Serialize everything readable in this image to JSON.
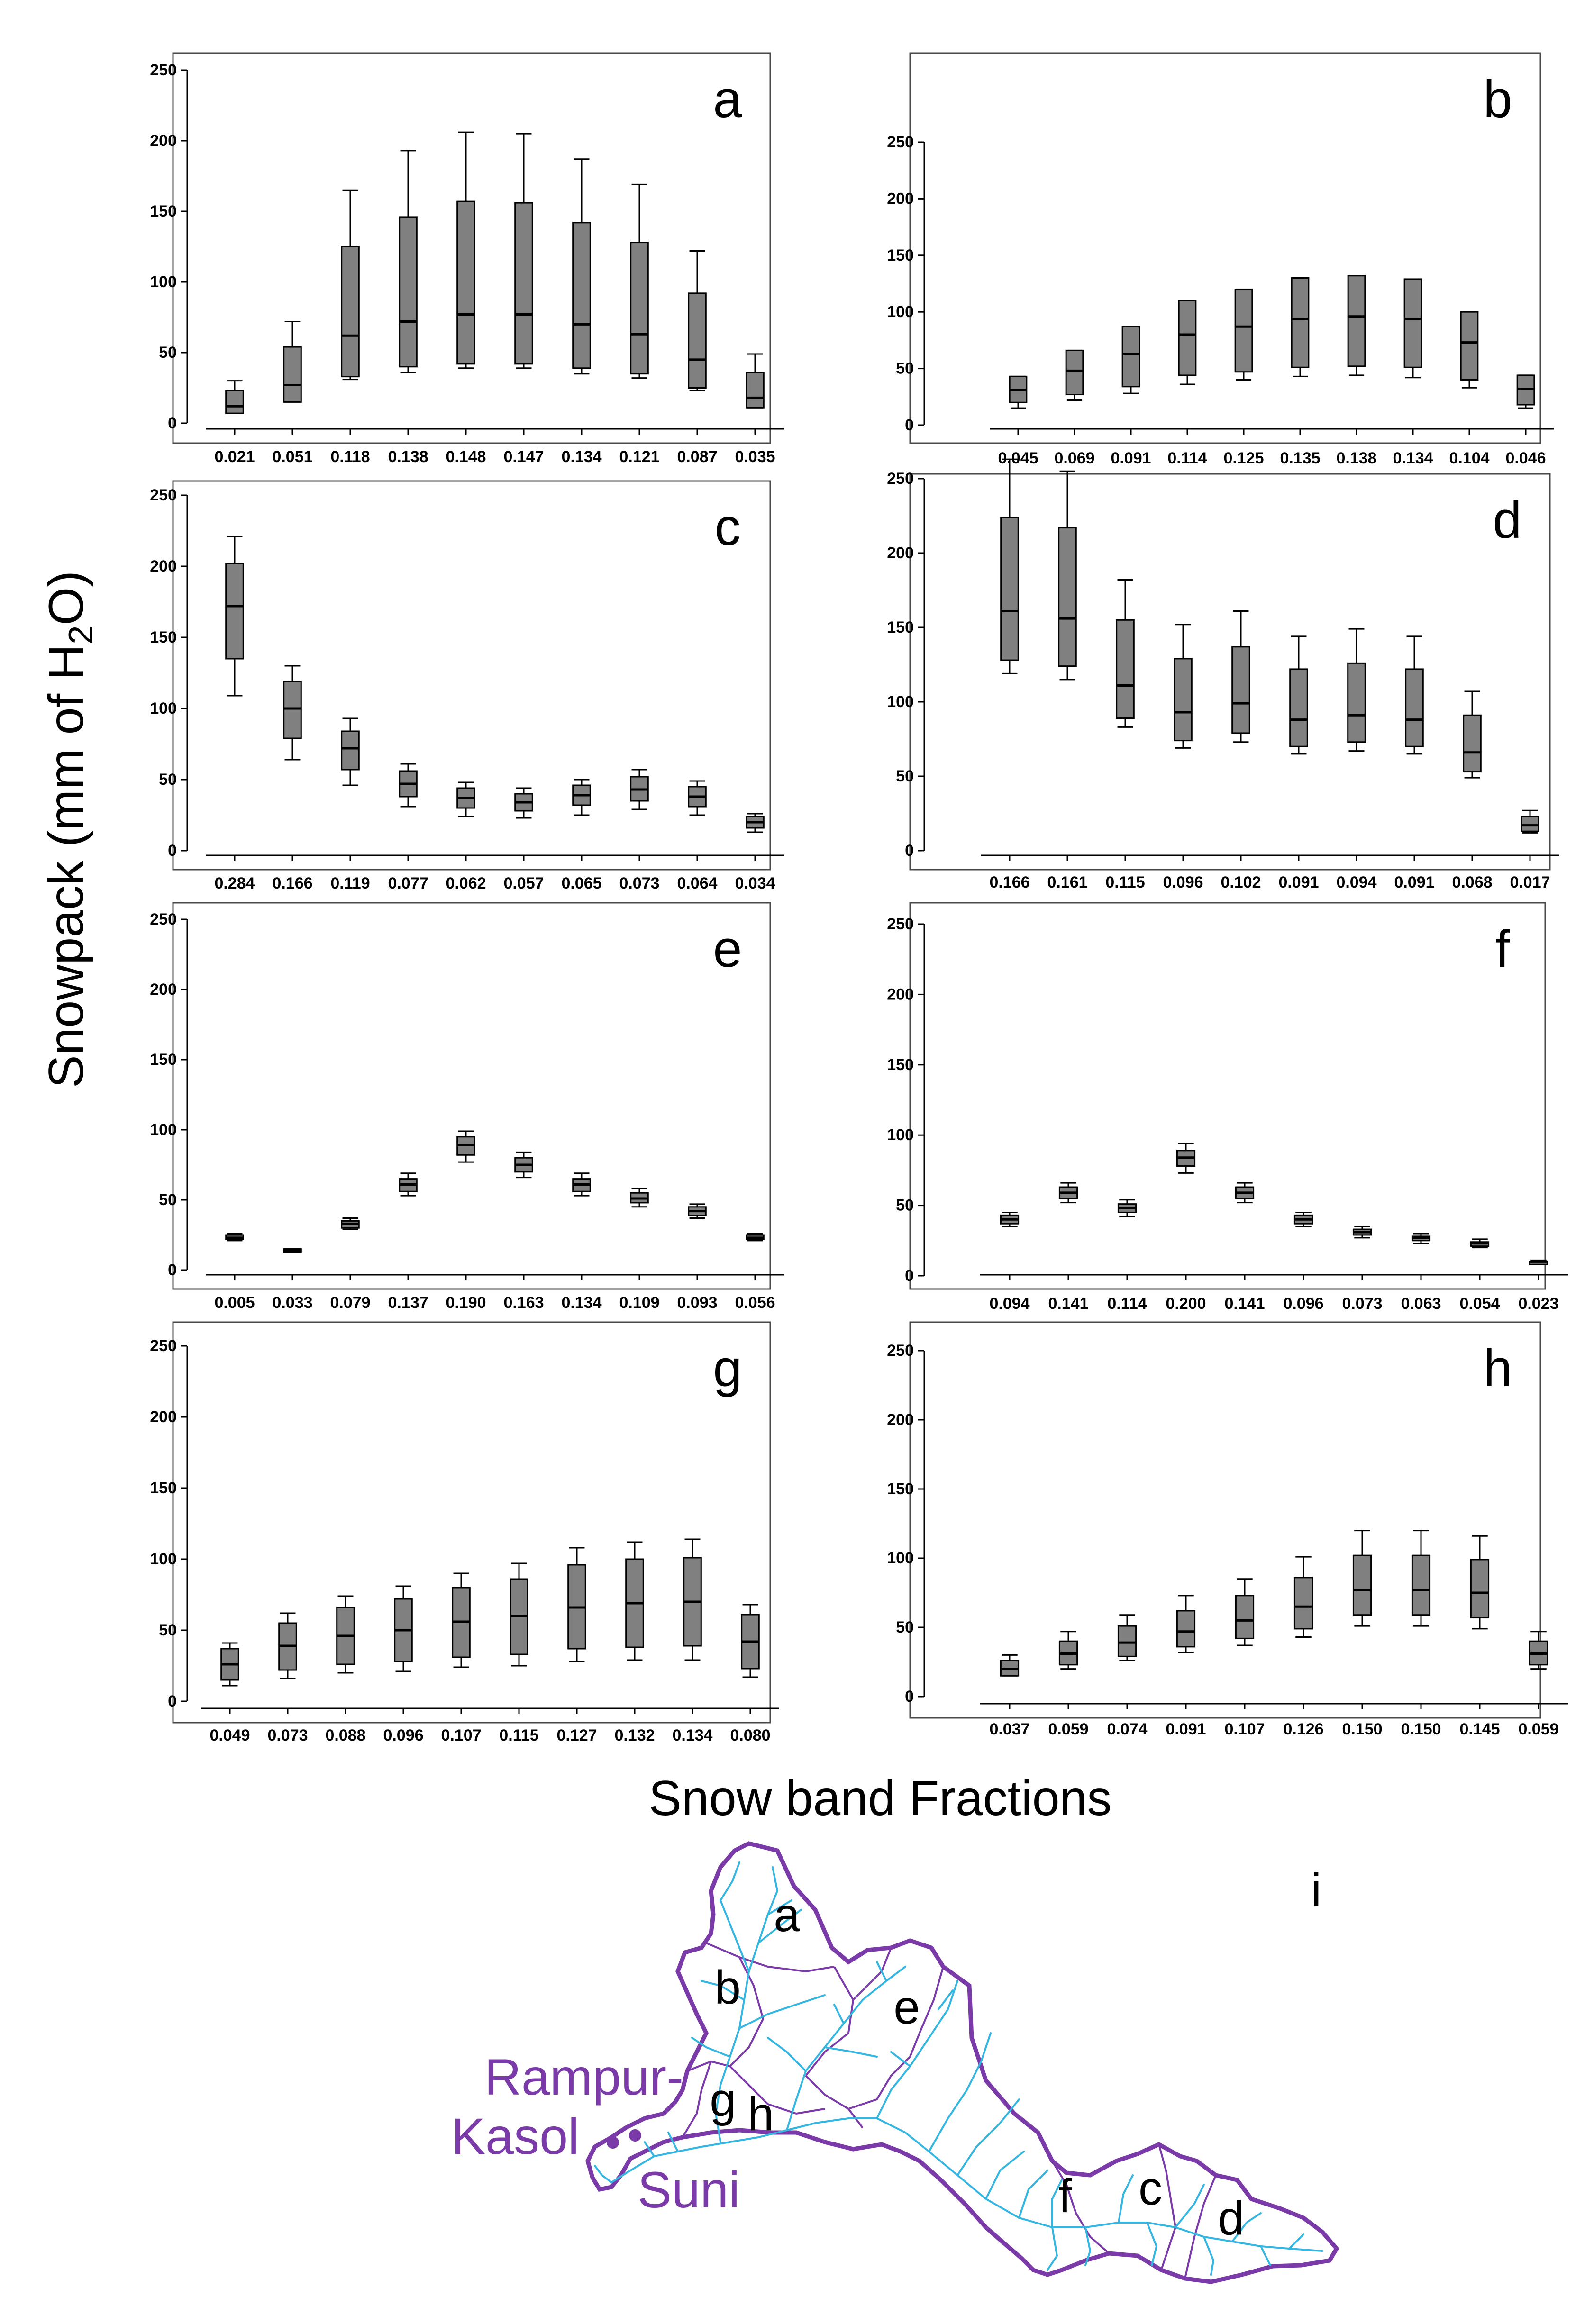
{
  "figure": {
    "ylabel_main": "Snowpack (mm of H",
    "ylabel_sub": "2",
    "ylabel_end": "O)",
    "xlabel": "Snow band Fractions",
    "colors": {
      "box": "#808080",
      "frame": "#4a4a4a",
      "river": "#35b6e0",
      "basin": "#7a3aa8",
      "text": "#000000"
    }
  },
  "chart_data": [
    {
      "type": "boxplot",
      "panel": "a",
      "ylim": [
        0,
        250
      ],
      "yticks": [
        0,
        50,
        100,
        150,
        200,
        250
      ],
      "categories": [
        "0.021",
        "0.051",
        "0.118",
        "0.138",
        "0.148",
        "0.147",
        "0.134",
        "0.121",
        "0.087",
        "0.035"
      ],
      "boxes": [
        {
          "min": 7,
          "q1": 7,
          "median": 12,
          "q3": 23,
          "max": 30
        },
        {
          "min": 15,
          "q1": 15,
          "median": 27,
          "q3": 54,
          "max": 72
        },
        {
          "min": 31,
          "q1": 33,
          "median": 62,
          "q3": 125,
          "max": 165
        },
        {
          "min": 36,
          "q1": 40,
          "median": 72,
          "q3": 146,
          "max": 193
        },
        {
          "min": 39,
          "q1": 42,
          "median": 77,
          "q3": 157,
          "max": 206
        },
        {
          "min": 39,
          "q1": 42,
          "median": 77,
          "q3": 156,
          "max": 205
        },
        {
          "min": 35,
          "q1": 39,
          "median": 70,
          "q3": 142,
          "max": 187
        },
        {
          "min": 32,
          "q1": 35,
          "median": 63,
          "q3": 128,
          "max": 169
        },
        {
          "min": 23,
          "q1": 25,
          "median": 45,
          "q3": 92,
          "max": 122
        },
        {
          "min": 11,
          "q1": 11,
          "median": 18,
          "q3": 36,
          "max": 49
        }
      ]
    },
    {
      "type": "boxplot",
      "panel": "b",
      "ylim": [
        0,
        250
      ],
      "yticks": [
        0,
        50,
        100,
        150,
        200,
        250
      ],
      "categories": [
        "0.045",
        "0.069",
        "0.091",
        "0.114",
        "0.125",
        "0.135",
        "0.138",
        "0.134",
        "0.104",
        "0.046"
      ],
      "boxes": [
        {
          "min": 15,
          "q1": 20,
          "median": 31,
          "q3": 43,
          "max": 43
        },
        {
          "min": 22,
          "q1": 27,
          "median": 48,
          "q3": 66,
          "max": 66
        },
        {
          "min": 28,
          "q1": 34,
          "median": 63,
          "q3": 87,
          "max": 87
        },
        {
          "min": 36,
          "q1": 44,
          "median": 80,
          "q3": 110,
          "max": 110
        },
        {
          "min": 40,
          "q1": 47,
          "median": 87,
          "q3": 120,
          "max": 120
        },
        {
          "min": 43,
          "q1": 51,
          "median": 94,
          "q3": 130,
          "max": 130
        },
        {
          "min": 44,
          "q1": 52,
          "median": 96,
          "q3": 132,
          "max": 132
        },
        {
          "min": 42,
          "q1": 51,
          "median": 94,
          "q3": 129,
          "max": 129
        },
        {
          "min": 33,
          "q1": 40,
          "median": 73,
          "q3": 100,
          "max": 100
        },
        {
          "min": 15,
          "q1": 18,
          "median": 32,
          "q3": 44,
          "max": 44
        }
      ]
    },
    {
      "type": "boxplot",
      "panel": "c",
      "ylim": [
        0,
        250
      ],
      "yticks": [
        0,
        50,
        100,
        150,
        200,
        250
      ],
      "categories": [
        "0.284",
        "0.166",
        "0.119",
        "0.077",
        "0.062",
        "0.057",
        "0.065",
        "0.073",
        "0.064",
        "0.034"
      ],
      "boxes": [
        {
          "min": 109,
          "q1": 135,
          "median": 172,
          "q3": 202,
          "max": 221
        },
        {
          "min": 64,
          "q1": 79,
          "median": 100,
          "q3": 119,
          "max": 130
        },
        {
          "min": 46,
          "q1": 57,
          "median": 72,
          "q3": 84,
          "max": 93
        },
        {
          "min": 31,
          "q1": 38,
          "median": 47,
          "q3": 56,
          "max": 61
        },
        {
          "min": 24,
          "q1": 30,
          "median": 37,
          "q3": 44,
          "max": 48
        },
        {
          "min": 23,
          "q1": 28,
          "median": 34,
          "q3": 40,
          "max": 44
        },
        {
          "min": 25,
          "q1": 32,
          "median": 39,
          "q3": 46,
          "max": 50
        },
        {
          "min": 29,
          "q1": 35,
          "median": 43,
          "q3": 52,
          "max": 57
        },
        {
          "min": 25,
          "q1": 31,
          "median": 38,
          "q3": 45,
          "max": 49
        },
        {
          "min": 13,
          "q1": 16,
          "median": 20,
          "q3": 24,
          "max": 26
        }
      ]
    },
    {
      "type": "boxplot",
      "panel": "d",
      "ylim": [
        0,
        250
      ],
      "yticks": [
        0,
        50,
        100,
        150,
        200,
        250
      ],
      "categories": [
        "0.166",
        "0.161",
        "0.115",
        "0.096",
        "0.102",
        "0.091",
        "0.094",
        "0.091",
        "0.068",
        "0.017"
      ],
      "boxes": [
        {
          "min": 119,
          "q1": 128,
          "median": 161,
          "q3": 224,
          "max": 263
        },
        {
          "min": 115,
          "q1": 124,
          "median": 156,
          "q3": 217,
          "max": 255
        },
        {
          "min": 83,
          "q1": 89,
          "median": 111,
          "q3": 155,
          "max": 182
        },
        {
          "min": 69,
          "q1": 74,
          "median": 93,
          "q3": 129,
          "max": 152
        },
        {
          "min": 73,
          "q1": 79,
          "median": 99,
          "q3": 137,
          "max": 161
        },
        {
          "min": 65,
          "q1": 70,
          "median": 88,
          "q3": 122,
          "max": 144
        },
        {
          "min": 67,
          "q1": 73,
          "median": 91,
          "q3": 126,
          "max": 149
        },
        {
          "min": 65,
          "q1": 70,
          "median": 88,
          "q3": 122,
          "max": 144
        },
        {
          "min": 49,
          "q1": 53,
          "median": 66,
          "q3": 91,
          "max": 107
        },
        {
          "min": 12,
          "q1": 13,
          "median": 17,
          "q3": 23,
          "max": 27
        }
      ]
    },
    {
      "type": "boxplot",
      "panel": "e",
      "ylim": [
        0,
        250
      ],
      "yticks": [
        0,
        50,
        100,
        150,
        200,
        250
      ],
      "categories": [
        "0.005",
        "0.033",
        "0.079",
        "0.137",
        "0.190",
        "0.163",
        "0.134",
        "0.109",
        "0.093",
        "0.056"
      ],
      "boxes": [
        {
          "min": 21,
          "q1": 22,
          "median": 23,
          "q3": 25,
          "max": 26
        },
        {
          "min": 13,
          "q1": 13,
          "median": 14,
          "q3": 15,
          "max": 15
        },
        {
          "min": 29,
          "q1": 30,
          "median": 33,
          "q3": 35,
          "max": 37
        },
        {
          "min": 53,
          "q1": 56,
          "median": 61,
          "q3": 65,
          "max": 69
        },
        {
          "min": 77,
          "q1": 82,
          "median": 89,
          "q3": 95,
          "max": 99
        },
        {
          "min": 66,
          "q1": 70,
          "median": 75,
          "q3": 80,
          "max": 84
        },
        {
          "min": 53,
          "q1": 56,
          "median": 61,
          "q3": 65,
          "max": 69
        },
        {
          "min": 45,
          "q1": 48,
          "median": 51,
          "q3": 55,
          "max": 58
        },
        {
          "min": 37,
          "q1": 39,
          "median": 42,
          "q3": 45,
          "max": 47
        },
        {
          "min": 21,
          "q1": 22,
          "median": 23,
          "q3": 25,
          "max": 26
        }
      ]
    },
    {
      "type": "boxplot",
      "panel": "f",
      "ylim": [
        0,
        250
      ],
      "yticks": [
        0,
        50,
        100,
        150,
        200,
        250
      ],
      "categories": [
        "0.094",
        "0.141",
        "0.114",
        "0.200",
        "0.141",
        "0.096",
        "0.073",
        "0.063",
        "0.054",
        "0.023"
      ],
      "boxes": [
        {
          "min": 35,
          "q1": 37,
          "median": 40,
          "q3": 43,
          "max": 45
        },
        {
          "min": 52,
          "q1": 55,
          "median": 59,
          "q3": 63,
          "max": 66
        },
        {
          "min": 42,
          "q1": 45,
          "median": 48,
          "q3": 51,
          "max": 54
        },
        {
          "min": 73,
          "q1": 78,
          "median": 84,
          "q3": 89,
          "max": 94
        },
        {
          "min": 52,
          "q1": 55,
          "median": 59,
          "q3": 63,
          "max": 66
        },
        {
          "min": 35,
          "q1": 37,
          "median": 40,
          "q3": 43,
          "max": 45
        },
        {
          "min": 27,
          "q1": 29,
          "median": 31,
          "q3": 33,
          "max": 35
        },
        {
          "min": 23,
          "q1": 25,
          "median": 27,
          "q3": 28,
          "max": 30
        },
        {
          "min": 20,
          "q1": 21,
          "median": 23,
          "q3": 24,
          "max": 26
        },
        {
          "min": 9,
          "q1": 9,
          "median": 10,
          "q3": 10,
          "max": 11
        }
      ]
    },
    {
      "type": "boxplot",
      "panel": "g",
      "ylim": [
        0,
        250
      ],
      "yticks": [
        0,
        50,
        100,
        150,
        200,
        250
      ],
      "categories": [
        "0.049",
        "0.073",
        "0.088",
        "0.096",
        "0.107",
        "0.115",
        "0.127",
        "0.132",
        "0.134",
        "0.080"
      ],
      "boxes": [
        {
          "min": 11,
          "q1": 15,
          "median": 26,
          "q3": 37,
          "max": 41
        },
        {
          "min": 16,
          "q1": 22,
          "median": 39,
          "q3": 55,
          "max": 62
        },
        {
          "min": 20,
          "q1": 26,
          "median": 46,
          "q3": 66,
          "max": 74
        },
        {
          "min": 21,
          "q1": 28,
          "median": 50,
          "q3": 72,
          "max": 81
        },
        {
          "min": 24,
          "q1": 31,
          "median": 56,
          "q3": 80,
          "max": 90
        },
        {
          "min": 25,
          "q1": 33,
          "median": 60,
          "q3": 86,
          "max": 97
        },
        {
          "min": 28,
          "q1": 37,
          "median": 66,
          "q3": 96,
          "max": 108
        },
        {
          "min": 29,
          "q1": 38,
          "median": 69,
          "q3": 100,
          "max": 112
        },
        {
          "min": 29,
          "q1": 39,
          "median": 70,
          "q3": 101,
          "max": 114
        },
        {
          "min": 17,
          "q1": 23,
          "median": 42,
          "q3": 61,
          "max": 68
        }
      ]
    },
    {
      "type": "boxplot",
      "panel": "h",
      "ylim": [
        0,
        250
      ],
      "yticks": [
        0,
        50,
        100,
        150,
        200,
        250
      ],
      "categories": [
        "0.037",
        "0.059",
        "0.074",
        "0.091",
        "0.107",
        "0.126",
        "0.150",
        "0.150",
        "0.145",
        "0.059"
      ],
      "boxes": [
        {
          "min": 15,
          "q1": 15,
          "median": 20,
          "q3": 26,
          "max": 30
        },
        {
          "min": 20,
          "q1": 23,
          "median": 31,
          "q3": 40,
          "max": 47
        },
        {
          "min": 26,
          "q1": 29,
          "median": 39,
          "q3": 51,
          "max": 59
        },
        {
          "min": 32,
          "q1": 36,
          "median": 47,
          "q3": 62,
          "max": 73
        },
        {
          "min": 37,
          "q1": 42,
          "median": 55,
          "q3": 73,
          "max": 85
        },
        {
          "min": 43,
          "q1": 49,
          "median": 65,
          "q3": 86,
          "max": 101
        },
        {
          "min": 51,
          "q1": 59,
          "median": 77,
          "q3": 102,
          "max": 120
        },
        {
          "min": 51,
          "q1": 59,
          "median": 77,
          "q3": 102,
          "max": 120
        },
        {
          "min": 49,
          "q1": 57,
          "median": 75,
          "q3": 99,
          "max": 116
        },
        {
          "min": 20,
          "q1": 23,
          "median": 31,
          "q3": 40,
          "max": 47
        }
      ]
    }
  ],
  "map": {
    "panel_label": "i",
    "subbasin_labels": [
      "a",
      "b",
      "e",
      "g",
      "h",
      "f",
      "c",
      "d"
    ],
    "station_1a": "Rampur-",
    "station_1b": "Kasol",
    "station_2": "Suni"
  }
}
